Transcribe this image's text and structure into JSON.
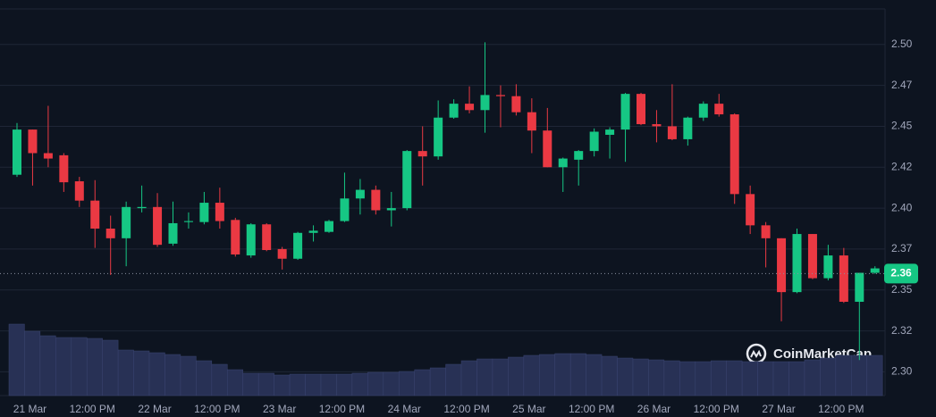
{
  "chart_data": {
    "type": "candlestick",
    "watermark": "CoinMarketCap",
    "categories": [
      null,
      "21 Mar",
      null,
      null,
      null,
      "12:00 PM",
      null,
      null,
      null,
      "22 Mar",
      null,
      null,
      null,
      "12:00 PM",
      null,
      null,
      null,
      "23 Mar",
      null,
      null,
      null,
      "12:00 PM",
      null,
      null,
      null,
      "24 Mar",
      null,
      null,
      null,
      "12:00 PM",
      null,
      null,
      null,
      "25 Mar",
      null,
      null,
      null,
      "12:00 PM",
      null,
      null,
      null,
      "26 Mar",
      null,
      null,
      null,
      "12:00 PM",
      null,
      null,
      null,
      "27 Mar",
      null,
      null,
      null,
      "12:00 PM",
      null,
      null
    ],
    "open": [
      2.4204,
      2.448,
      2.4336,
      2.4323,
      2.4164,
      2.4046,
      2.3875,
      2.3816,
      2.4,
      2.4007,
      2.3783,
      2.3915,
      2.3915,
      2.4033,
      2.3928,
      2.3711,
      2.3901,
      2.375,
      2.3691,
      2.3849,
      2.3855,
      2.3921,
      2.4059,
      2.4112,
      2.3987,
      2.4,
      2.4349,
      2.4316,
      2.4553,
      2.4638,
      2.4599,
      2.4691,
      2.4684,
      2.4586,
      2.4474,
      2.425,
      2.4296,
      2.4349,
      2.4448,
      2.448,
      2.4698,
      2.4513,
      2.45,
      2.4421,
      2.4553,
      2.4638,
      2.4573,
      2.4086,
      2.3895,
      2.3816,
      2.3487,
      2.3842,
      2.3572,
      2.3711,
      2.3428,
      2.3605
    ],
    "high": [
      2.452,
      2.448,
      2.4625,
      2.4336,
      2.4191,
      2.4171,
      2.3954,
      2.404,
      2.4138,
      2.4092,
      2.404,
      2.3974,
      2.4099,
      2.4125,
      2.3941,
      2.3908,
      2.3908,
      2.3763,
      2.3855,
      2.3895,
      2.3928,
      2.4217,
      2.4178,
      2.4138,
      2.4099,
      2.4355,
      2.45,
      2.4658,
      2.4665,
      2.4744,
      2.5013,
      2.475,
      2.4757,
      2.4671,
      2.4612,
      2.4309,
      2.4355,
      2.4487,
      2.4494,
      2.4704,
      2.4704,
      2.4599,
      2.4757,
      2.4559,
      2.4652,
      2.4698,
      2.4579,
      2.4138,
      2.3915,
      2.3816,
      2.3875,
      2.3842,
      2.3776,
      2.3757,
      2.3605,
      2.3645
    ],
    "low": [
      2.4191,
      2.4138,
      2.425,
      2.4099,
      2.4007,
      2.3757,
      2.3592,
      2.3645,
      2.3974,
      2.3763,
      2.377,
      2.3875,
      2.3901,
      2.3875,
      2.3704,
      2.3697,
      2.3737,
      2.3625,
      2.3684,
      2.3796,
      2.3849,
      2.3915,
      2.3961,
      2.3961,
      2.3888,
      2.3987,
      2.4138,
      2.4296,
      2.4546,
      2.4579,
      2.4461,
      2.4494,
      2.4566,
      2.4336,
      2.425,
      2.4099,
      2.4138,
      2.4316,
      2.4303,
      2.4283,
      2.4507,
      2.4402,
      2.4415,
      2.4382,
      2.4533,
      2.4559,
      2.4026,
      2.3842,
      2.3638,
      2.3309,
      2.348,
      2.3566,
      2.3559,
      2.3421,
      2.3072,
      2.3599
    ],
    "close": [
      2.448,
      2.4336,
      2.4303,
      2.4158,
      2.4046,
      2.3875,
      2.3816,
      2.4007,
      2.4007,
      2.3776,
      2.3908,
      2.3921,
      2.4033,
      2.3921,
      2.3717,
      2.3901,
      2.3744,
      2.3691,
      2.3849,
      2.3862,
      2.3921,
      2.4059,
      2.4112,
      2.3987,
      2.4,
      2.4349,
      2.4316,
      2.4553,
      2.4638,
      2.4599,
      2.4691,
      2.4684,
      2.4586,
      2.4474,
      2.425,
      2.4303,
      2.4349,
      2.4467,
      2.448,
      2.4698,
      2.4513,
      2.45,
      2.4421,
      2.4553,
      2.4638,
      2.4573,
      2.4086,
      2.3895,
      2.3816,
      2.3487,
      2.3842,
      2.3572,
      2.3711,
      2.3428,
      2.3605,
      2.3632
    ],
    "volume": [
      80,
      72,
      67,
      65,
      65,
      64,
      62,
      51,
      50,
      48,
      46,
      44,
      39,
      35,
      29,
      25,
      25,
      23,
      24,
      24,
      24,
      24,
      25,
      26,
      26,
      27,
      29,
      31,
      35,
      39,
      41,
      41,
      43,
      45,
      46,
      47,
      47,
      46,
      44,
      42,
      41,
      40,
      39,
      38,
      38,
      39,
      39,
      38,
      38,
      38,
      38,
      40,
      42,
      45,
      45,
      45
    ],
    "up_color": "#16c784",
    "down_color": "#ea3943",
    "volume_color": "#283155",
    "current_price": 2.36,
    "ylim": [
      2.2855,
      2.5217
    ],
    "yticks": [
      {
        "value": 2.5,
        "label": "2.50"
      },
      {
        "value": 2.475,
        "label": "2.47"
      },
      2.45,
      {
        "value": 2.425,
        "label": "2.42"
      },
      {
        "value": 2.4,
        "label": "2.40"
      },
      {
        "value": 2.375,
        "label": "2.37"
      },
      2.35,
      {
        "value": 2.325,
        "label": "2.32"
      },
      {
        "value": 2.3,
        "label": "2.30"
      }
    ],
    "grid": true
  }
}
